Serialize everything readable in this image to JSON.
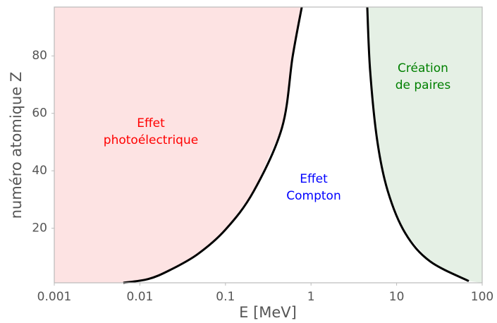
{
  "chart_data": {
    "type": "line",
    "xlabel": "E [MeV]",
    "ylabel": "numéro atomique Z",
    "xscale": "log",
    "xlim": [
      0.001,
      100
    ],
    "ylim": [
      1,
      97
    ],
    "xticks": [
      0.001,
      0.01,
      0.1,
      1,
      10,
      100
    ],
    "yticks": [
      20,
      40,
      60,
      80
    ],
    "grid": false,
    "series": [
      {
        "color": "#000000",
        "fill": "#fde3e3",
        "fill_side": "left",
        "x": [
          0.0064,
          0.0125,
          0.022,
          0.047,
          0.1,
          0.214,
          0.458,
          0.61,
          0.78
        ],
        "values": [
          1,
          2.3,
          5.3,
          10.9,
          19.5,
          32.9,
          55,
          79.8,
          97
        ]
      },
      {
        "color": "#000000",
        "fill": "#e5f0e5",
        "fill_side": "right",
        "x": [
          4.54,
          4.9,
          5.93,
          7.87,
          12.6,
          24.5,
          69.7
        ],
        "values": [
          97,
          75,
          50.6,
          33,
          18.3,
          8.5,
          1.6
        ]
      }
    ],
    "annotations": [
      {
        "lines": [
          "Effet",
          "photoélectrique"
        ],
        "color": "#ff0000"
      },
      {
        "lines": [
          "Effet",
          "Compton"
        ],
        "color": "#0000ff"
      },
      {
        "lines": [
          "Création",
          "de paires"
        ],
        "color": "#008000"
      }
    ]
  }
}
